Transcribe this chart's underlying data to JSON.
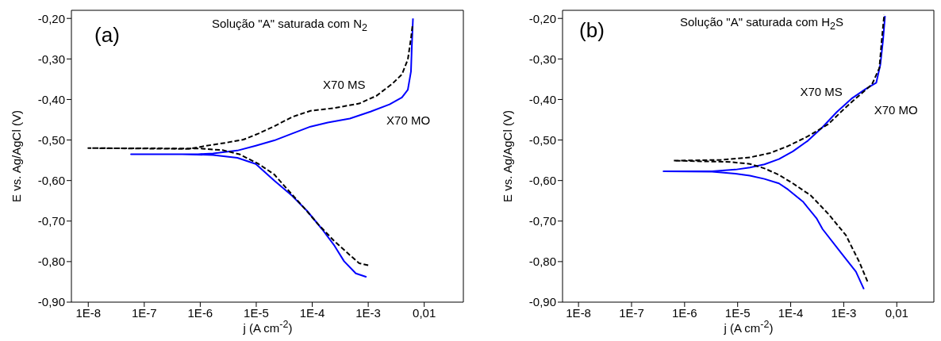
{
  "chart_data": [
    {
      "type": "line",
      "annotations": [
        "(a)",
        "Solução \"A\" saturada com N$_{2}$"
      ],
      "xlabel": "j (A cm$^{-2}$)",
      "ylabel": "E vs. Ag/AgCl (V)",
      "log": "x",
      "xlim": [
        5e-09,
        0.05
      ],
      "xticks": [
        {
          "value": 1e-08,
          "label": "1E-8"
        },
        {
          "value": 1e-07,
          "label": "1E-7"
        },
        {
          "value": 1e-06,
          "label": "1E-6"
        },
        {
          "value": 1e-05,
          "label": "1E-5"
        },
        {
          "value": 0.0001,
          "label": "1E-4"
        },
        {
          "value": 0.001,
          "label": "1E-3"
        },
        {
          "value": 0.01,
          "label": "0,01"
        }
      ],
      "ylim": [
        -0.9,
        -0.18
      ],
      "yticks": [
        {
          "value": -0.9,
          "label": "-0,90"
        },
        {
          "value": -0.8,
          "label": "-0,80"
        },
        {
          "value": -0.7,
          "label": "-0,70"
        },
        {
          "value": -0.6,
          "label": "-0,60"
        },
        {
          "value": -0.5,
          "label": "-0,50"
        },
        {
          "value": -0.4,
          "label": "-0,40"
        },
        {
          "value": -0.3,
          "label": "-0,30"
        },
        {
          "value": -0.2,
          "label": "-0,20"
        }
      ],
      "marker": "none",
      "series": [
        {
          "name": "X70 MS",
          "color": "#000000",
          "line_style": "dashed",
          "x": [
            0.001,
            0.00069,
            0.00047,
            0.00025,
            0.00013,
            7.2e-05,
            3.9e-05,
            2.1e-05,
            1.1e-05,
            5e-06,
            2.5e-06,
            1e-06,
            1e-08,
            1e-08,
            6.3e-07,
            1.3e-06,
            2.8e-06,
            5.9e-06,
            1.1e-05,
            2.1e-05,
            4.4e-05,
            9.3e-05,
            0.00025,
            0.00069,
            0.0014,
            0.0027,
            0.004,
            0.0051,
            0.0058,
            0.0062
          ],
          "values": [
            -0.809,
            -0.804,
            -0.784,
            -0.75,
            -0.709,
            -0.668,
            -0.627,
            -0.585,
            -0.559,
            -0.535,
            -0.525,
            -0.521,
            -0.52,
            -0.52,
            -0.522,
            -0.514,
            -0.507,
            -0.499,
            -0.484,
            -0.466,
            -0.443,
            -0.428,
            -0.421,
            -0.41,
            -0.391,
            -0.361,
            -0.338,
            -0.301,
            -0.249,
            -0.215
          ]
        },
        {
          "name": "X70 MO",
          "color": "#0000ff",
          "line_style": "solid",
          "x": [
            0.00093,
            0.0006,
            0.00037,
            0.00025,
            0.00015,
            8.1e-05,
            4.4e-05,
            2.1e-05,
            9.8e-06,
            4.6e-06,
            1.7e-06,
            4.8e-07,
            5.8e-08,
            9.1e-07,
            1.7e-06,
            4.6e-06,
            9.8e-06,
            2.1e-05,
            4.4e-05,
            9.3e-05,
            0.00019,
            0.00047,
            0.0011,
            0.0024,
            0.004,
            0.0051,
            0.0058,
            0.006,
            0.0063
          ],
          "values": [
            -0.838,
            -0.829,
            -0.799,
            -0.761,
            -0.72,
            -0.675,
            -0.638,
            -0.6,
            -0.559,
            -0.544,
            -0.537,
            -0.535,
            -0.535,
            -0.535,
            -0.533,
            -0.526,
            -0.514,
            -0.501,
            -0.484,
            -0.467,
            -0.457,
            -0.447,
            -0.43,
            -0.412,
            -0.395,
            -0.376,
            -0.331,
            -0.271,
            -0.2
          ]
        }
      ]
    },
    {
      "type": "line",
      "annotations": [
        "(b)",
        "Solução \"A\" saturada com H$_{2}$S"
      ],
      "xlabel": "j (A cm$^{-2}$)",
      "ylabel": "E vs. Ag/AgCl (V)",
      "log": "x",
      "xlim": [
        5e-09,
        0.05
      ],
      "xticks": [
        {
          "value": 1e-08,
          "label": "1E-8"
        },
        {
          "value": 1e-07,
          "label": "1E-7"
        },
        {
          "value": 1e-06,
          "label": "1E-6"
        },
        {
          "value": 1e-05,
          "label": "1E-5"
        },
        {
          "value": 0.0001,
          "label": "1E-4"
        },
        {
          "value": 0.001,
          "label": "1E-3"
        },
        {
          "value": 0.01,
          "label": "0,01"
        }
      ],
      "ylim": [
        -0.9,
        -0.18
      ],
      "yticks": [
        {
          "value": -0.9,
          "label": "-0,90"
        },
        {
          "value": -0.8,
          "label": "-0,80"
        },
        {
          "value": -0.7,
          "label": "-0,70"
        },
        {
          "value": -0.6,
          "label": "-0,60"
        },
        {
          "value": -0.5,
          "label": "-0,50"
        },
        {
          "value": -0.4,
          "label": "-0,40"
        },
        {
          "value": -0.3,
          "label": "-0,30"
        },
        {
          "value": -0.2,
          "label": "-0,20"
        }
      ],
      "marker": "none",
      "series": [
        {
          "name": "X70 MS",
          "color": "#000000",
          "line_style": "dashed",
          "x": [
            0.0028,
            0.002,
            0.0011,
            0.00051,
            0.00024,
            0.00011,
            6e-05,
            3.2e-05,
            1.7e-05,
            7.1e-06,
            6.2e-07,
            6.2e-07,
            4.9e-06,
            1.7e-05,
            4.1e-05,
            8.9e-05,
            0.00021,
            0.00051,
            0.0011,
            0.002,
            0.0034,
            0.0047,
            0.0052,
            0.0058
          ],
          "values": [
            -0.849,
            -0.803,
            -0.735,
            -0.682,
            -0.637,
            -0.607,
            -0.586,
            -0.57,
            -0.559,
            -0.554,
            -0.551,
            -0.551,
            -0.549,
            -0.543,
            -0.532,
            -0.515,
            -0.491,
            -0.461,
            -0.419,
            -0.389,
            -0.363,
            -0.322,
            -0.254,
            -0.19
          ]
        },
        {
          "name": "X70 MO",
          "color": "#0000ff",
          "line_style": "solid",
          "x": [
            0.0024,
            0.0017,
            0.00091,
            0.0004,
            0.00031,
            0.00017,
            8.9e-05,
            6e-05,
            3.2e-05,
            1.7e-05,
            9.1e-06,
            3.3e-06,
            4e-07,
            3.3e-06,
            9.1e-06,
            1.7e-05,
            3.2e-05,
            6e-05,
            0.00011,
            0.00021,
            0.0004,
            0.00074,
            0.0014,
            0.0026,
            0.0041,
            0.0049,
            0.0055,
            0.006
          ],
          "values": [
            -0.868,
            -0.825,
            -0.78,
            -0.72,
            -0.694,
            -0.652,
            -0.622,
            -0.607,
            -0.596,
            -0.588,
            -0.583,
            -0.578,
            -0.577,
            -0.577,
            -0.573,
            -0.568,
            -0.56,
            -0.547,
            -0.528,
            -0.502,
            -0.468,
            -0.431,
            -0.398,
            -0.374,
            -0.359,
            -0.314,
            -0.254,
            -0.194
          ]
        }
      ]
    }
  ]
}
